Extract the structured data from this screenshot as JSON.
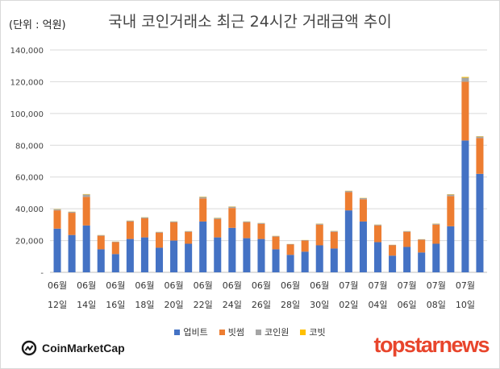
{
  "header": {
    "unit_label": "(단위 : 억원)",
    "title": "국내 코인거래소 최근 24시간 거래금액 추이"
  },
  "legend": [
    {
      "name": "업비트",
      "color": "#4472c4"
    },
    {
      "name": "빗썸",
      "color": "#ed7d31"
    },
    {
      "name": "코인원",
      "color": "#a5a5a5"
    },
    {
      "name": "코빗",
      "color": "#ffc000"
    }
  ],
  "branding": {
    "left_logo": "CoinMarketCap",
    "right_logo": "topstarnews"
  },
  "chart_data": {
    "type": "bar",
    "stacked": true,
    "title": "국내 코인거래소 최근 24시간 거래금액 추이",
    "ylabel": "(단위 : 억원)",
    "ylim": [
      0,
      140000
    ],
    "yticks": [
      "-",
      "20,000",
      "40,000",
      "60,000",
      "80,000",
      "100,000",
      "120,000",
      "140,000"
    ],
    "grid": true,
    "legend_position": "bottom",
    "x_labels": [
      {
        "month": "06월",
        "day": "12일"
      },
      {
        "month": "06월",
        "day": "14일"
      },
      {
        "month": "06월",
        "day": "16일"
      },
      {
        "month": "06월",
        "day": "18일"
      },
      {
        "month": "06월",
        "day": "20일"
      },
      {
        "month": "06월",
        "day": "22일"
      },
      {
        "month": "06월",
        "day": "24일"
      },
      {
        "month": "06월",
        "day": "26일"
      },
      {
        "month": "06월",
        "day": "28일"
      },
      {
        "month": "06월",
        "day": "30일"
      },
      {
        "month": "07월",
        "day": "02일"
      },
      {
        "month": "07월",
        "day": "04일"
      },
      {
        "month": "07월",
        "day": "06일"
      },
      {
        "month": "07월",
        "day": "08일"
      },
      {
        "month": "07월",
        "day": "10일"
      }
    ],
    "series": [
      {
        "name": "업비트",
        "color": "#4472c4",
        "values": [
          27500,
          23500,
          29500,
          14500,
          11500,
          21000,
          22000,
          15500,
          20000,
          18000,
          32000,
          22000,
          28000,
          21500,
          21000,
          14500,
          11000,
          13000,
          17000,
          15000,
          39000,
          32000,
          19000,
          10500,
          16000,
          12500,
          18000,
          29000,
          83000,
          62000
        ]
      },
      {
        "name": "빗썸",
        "color": "#ed7d31",
        "values": [
          11500,
          14000,
          18000,
          8500,
          7500,
          11000,
          12000,
          9500,
          11500,
          7500,
          14500,
          11500,
          12500,
          10000,
          9500,
          8000,
          6500,
          7000,
          13000,
          10500,
          11500,
          14000,
          10500,
          6500,
          9500,
          8000,
          12000,
          19000,
          37000,
          22500
        ]
      },
      {
        "name": "코인원",
        "color": "#a5a5a5",
        "values": [
          700,
          600,
          1500,
          400,
          300,
          500,
          600,
          400,
          500,
          400,
          900,
          700,
          800,
          500,
          500,
          400,
          300,
          300,
          600,
          500,
          700,
          700,
          500,
          300,
          400,
          300,
          600,
          1000,
          2500,
          1000
        ]
      },
      {
        "name": "코빗",
        "color": "#ffc000",
        "values": [
          150,
          120,
          250,
          80,
          60,
          100,
          120,
          80,
          100,
          80,
          200,
          150,
          150,
          100,
          100,
          80,
          60,
          60,
          120,
          100,
          150,
          150,
          100,
          60,
          80,
          60,
          120,
          200,
          500,
          200
        ]
      }
    ]
  }
}
